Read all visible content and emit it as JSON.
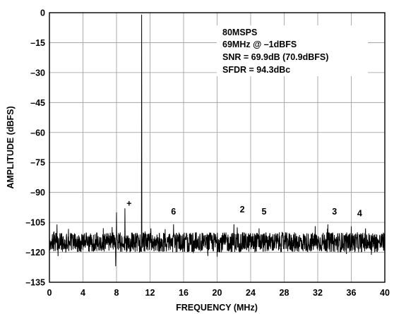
{
  "chart_data": {
    "type": "line",
    "title": "",
    "xlabel": "FREQUENCY (MHz)",
    "ylabel": "AMPLITUDE (dBFS)",
    "xlim": [
      0,
      40
    ],
    "ylim": [
      -135,
      0
    ],
    "x_ticks": [
      0,
      4,
      8,
      12,
      16,
      20,
      24,
      28,
      32,
      36,
      40
    ],
    "y_ticks": [
      0,
      -15,
      -30,
      -45,
      -60,
      -75,
      -90,
      -105,
      -120,
      -135
    ],
    "x_tick_labels": [
      "0",
      "4",
      "8",
      "12",
      "16",
      "20",
      "24",
      "28",
      "32",
      "36",
      "40"
    ],
    "y_tick_labels": [
      "0",
      "–15",
      "–30",
      "–45",
      "–60",
      "–75",
      "–90",
      "–105",
      "–120",
      "–135"
    ],
    "grid": true,
    "info_lines": [
      "80MSPS",
      "69MHz @ –1dBFS",
      "SNR = 69.9dB (70.9dBFS)",
      "SFDR = 94.3dBc"
    ],
    "series": [
      {
        "noise_floor_dbfs": -115,
        "noise_band_dbfs": [
          -120,
          -110
        ],
        "peaks": [
          {
            "x": 11.0,
            "y": -1
          },
          {
            "x": 9.0,
            "y": -98
          },
          {
            "x": 8.0,
            "y": -100
          },
          {
            "x": 14.8,
            "y": -106
          },
          {
            "x": 22.0,
            "y": -106
          },
          {
            "x": 25.0,
            "y": -108
          },
          {
            "x": 33.2,
            "y": -106
          },
          {
            "x": 36.0,
            "y": -107
          },
          {
            "x": 37.7,
            "y": -108
          },
          {
            "x": 7.9,
            "y": -127
          },
          {
            "x": 12.1,
            "y": -108
          }
        ]
      }
    ],
    "annotations": [
      {
        "text": "+",
        "x": 9.5,
        "y": -97
      },
      {
        "text": "6",
        "x": 14.8,
        "y": -101
      },
      {
        "text": "2",
        "x": 23.0,
        "y": -100
      },
      {
        "text": "5",
        "x": 25.6,
        "y": -101
      },
      {
        "text": "3",
        "x": 34.0,
        "y": -101
      },
      {
        "text": "4",
        "x": 37.0,
        "y": -102
      }
    ]
  }
}
